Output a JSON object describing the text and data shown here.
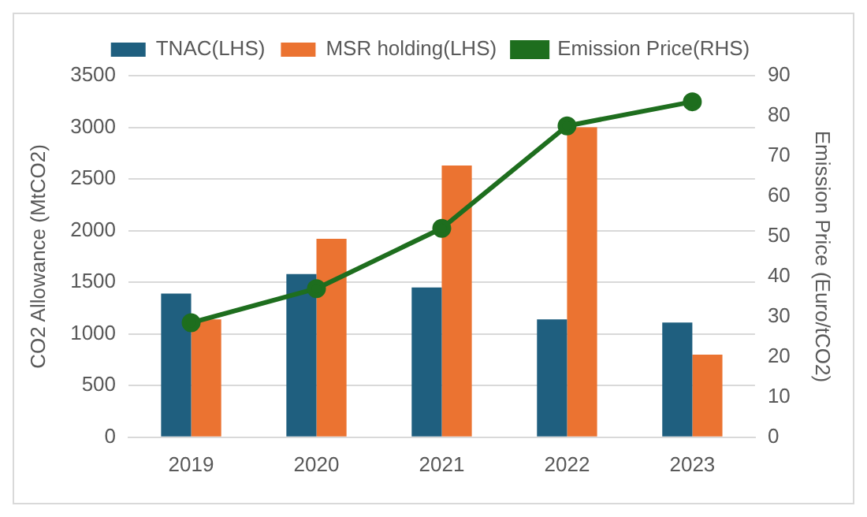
{
  "chart_data": {
    "type": "bar",
    "categories": [
      "2019",
      "2020",
      "2021",
      "2022",
      "2023"
    ],
    "ylabel": "CO2 Allowance (MtCO2)",
    "y2label": "Emission Price (Euro/tCO2)",
    "ylim": [
      0,
      3500
    ],
    "yticks": [
      0,
      500,
      1000,
      1500,
      2000,
      2500,
      3000,
      3500
    ],
    "y2lim": [
      0,
      90
    ],
    "y2ticks": [
      0,
      10,
      20,
      30,
      40,
      50,
      60,
      70,
      80,
      90
    ],
    "grid": "y",
    "legend": "top",
    "series": [
      {
        "name": "TNAC(LHS)",
        "color": "#1f5f7f",
        "values": [
          1390,
          1580,
          1450,
          1140,
          1110
        ]
      },
      {
        "name": "MSR holding(LHS)",
        "color": "#eb7331",
        "values": [
          1140,
          1920,
          2630,
          3000,
          800
        ]
      },
      {
        "name": "Emission Price(RHS)",
        "type": "line",
        "axis": "y2",
        "color": "#1e6e1e",
        "marker": "circle",
        "line_style": "solid",
        "values": [
          28.5,
          37,
          52,
          77.5,
          83.5
        ]
      }
    ]
  }
}
